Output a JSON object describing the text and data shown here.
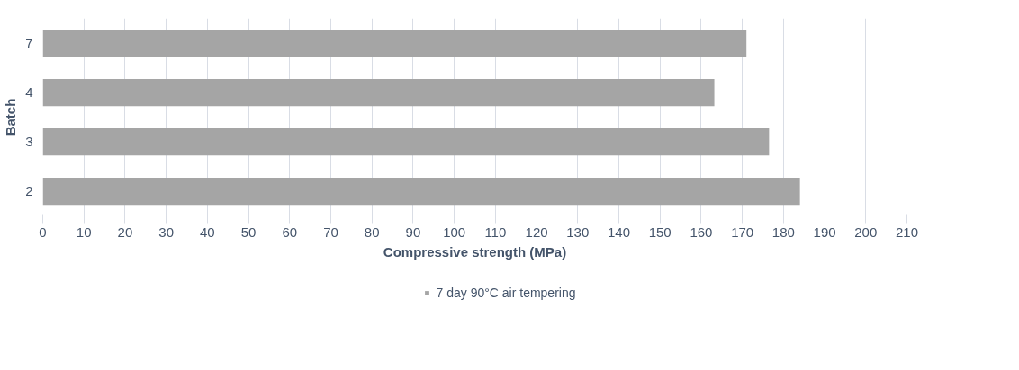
{
  "chart_data": {
    "type": "bar",
    "orientation": "horizontal",
    "xlabel": "Compressive strength (MPa)",
    "ylabel": "Batch",
    "categories": [
      "7",
      "4",
      "3",
      "2"
    ],
    "series": [
      {
        "name": "7 day 90°C air tempering",
        "color": "#a5a5a5",
        "values": [
          171,
          163.2,
          176.5,
          184
        ]
      }
    ],
    "xlim": [
      0,
      210
    ],
    "xticks": [
      0,
      10,
      20,
      30,
      40,
      50,
      60,
      70,
      80,
      90,
      100,
      110,
      120,
      130,
      140,
      150,
      160,
      170,
      180,
      190,
      200,
      210
    ],
    "grid": "x",
    "legend": "bottom"
  }
}
